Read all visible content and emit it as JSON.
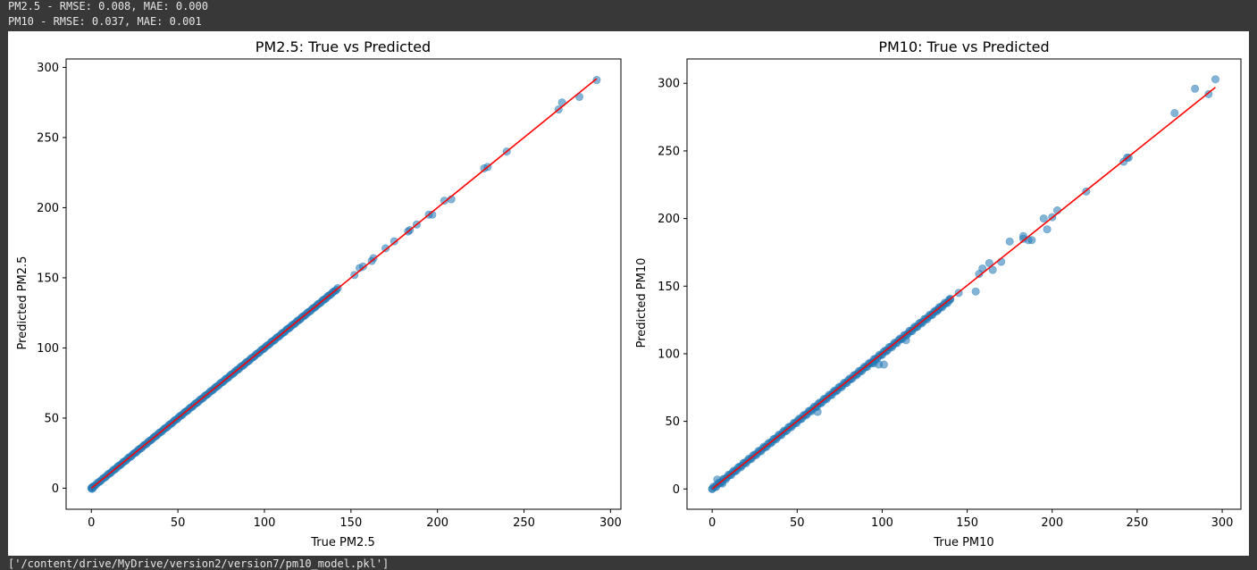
{
  "console": {
    "line1": "PM2.5 - RMSE: 0.008, MAE: 0.000",
    "line2": "PM10 - RMSE: 0.037, MAE: 0.001",
    "line3": "['/content/drive/MyDrive/version2/version7/pm10_model.pkl']"
  },
  "colors": {
    "scatter": "#1f77b4",
    "line": "#ff0000"
  },
  "chart_data": [
    {
      "type": "scatter",
      "title": "PM2.5: True vs Predicted",
      "xlabel": "True PM2.5",
      "ylabel": "Predicted PM2.5",
      "xlim": [
        -14.6,
        306
      ],
      "ylim": [
        -15,
        306
      ],
      "xticks": [
        0,
        50,
        100,
        150,
        200,
        250,
        300
      ],
      "yticks": [
        0,
        50,
        100,
        150,
        200,
        250,
        300
      ],
      "reference_line": [
        [
          0,
          0
        ],
        [
          292,
          292
        ]
      ],
      "dense_band": {
        "from": 0,
        "to": 143,
        "step": 0.8,
        "jitter": 0.3
      },
      "points": [
        [
          0,
          0
        ],
        [
          0.5,
          -0.5
        ],
        [
          1,
          0.5
        ],
        [
          152,
          152
        ],
        [
          155,
          157
        ],
        [
          157,
          158
        ],
        [
          162,
          162
        ],
        [
          163,
          164
        ],
        [
          170,
          171
        ],
        [
          175,
          176
        ],
        [
          183,
          183
        ],
        [
          184,
          184
        ],
        [
          188,
          188
        ],
        [
          195,
          195
        ],
        [
          197,
          195
        ],
        [
          204,
          205
        ],
        [
          208,
          206
        ],
        [
          227,
          228
        ],
        [
          229,
          229
        ],
        [
          240,
          240
        ],
        [
          270,
          270
        ],
        [
          272,
          275
        ],
        [
          282,
          279
        ],
        [
          292,
          291
        ]
      ],
      "point_alpha": 0.55
    },
    {
      "type": "scatter",
      "title": "PM10: True vs Predicted",
      "xlabel": "True PM10",
      "ylabel": "Predicted PM10",
      "xlim": [
        -14.8,
        311
      ],
      "ylim": [
        -15,
        318
      ],
      "xticks": [
        0,
        50,
        100,
        150,
        200,
        250,
        300
      ],
      "yticks": [
        0,
        50,
        100,
        150,
        200,
        250,
        300
      ],
      "reference_line": [
        [
          0,
          0
        ],
        [
          296,
          297
        ]
      ],
      "dense_band": {
        "from": 0,
        "to": 140,
        "step": 0.8,
        "jitter": 0.9
      },
      "points": [
        [
          0,
          0
        ],
        [
          3,
          7
        ],
        [
          6,
          4
        ],
        [
          62,
          57
        ],
        [
          95,
          93
        ],
        [
          98,
          92
        ],
        [
          101,
          92
        ],
        [
          114,
          110
        ],
        [
          133,
          133
        ],
        [
          140,
          140
        ],
        [
          145,
          145
        ],
        [
          155,
          146
        ],
        [
          157,
          159
        ],
        [
          159,
          163
        ],
        [
          163,
          167
        ],
        [
          165,
          162
        ],
        [
          170,
          168
        ],
        [
          175,
          183
        ],
        [
          183,
          187
        ],
        [
          183,
          185
        ],
        [
          186,
          184
        ],
        [
          188,
          184
        ],
        [
          195,
          200
        ],
        [
          197,
          192
        ],
        [
          200,
          201
        ],
        [
          203,
          206
        ],
        [
          220,
          220
        ],
        [
          242,
          242
        ],
        [
          244,
          245
        ],
        [
          245,
          245
        ],
        [
          272,
          278
        ],
        [
          284,
          296
        ],
        [
          292,
          292
        ],
        [
          296,
          303
        ]
      ],
      "point_alpha": 0.55
    }
  ]
}
